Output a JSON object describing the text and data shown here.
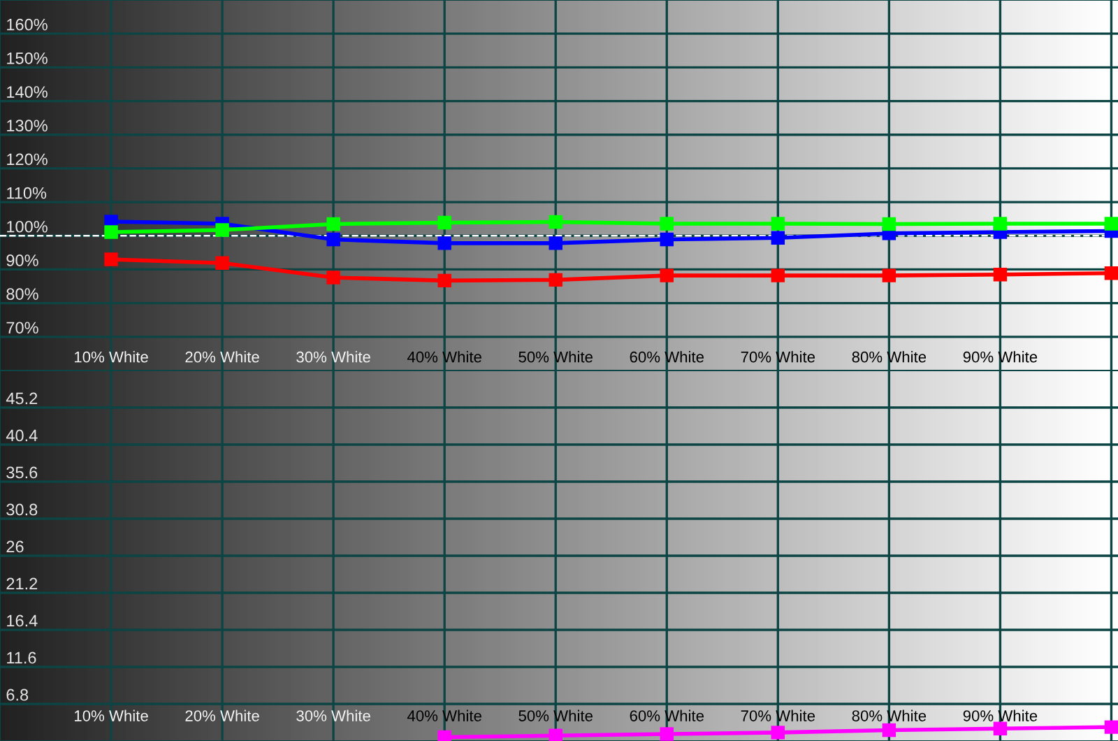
{
  "chart_data": [
    {
      "type": "line",
      "categories": [
        "10% White",
        "20% White",
        "30% White",
        "40% White",
        "50% White",
        "60% White",
        "70% White",
        "80% White",
        "90% White",
        null
      ],
      "series": [
        {
          "color": "#00ff00",
          "values": [
            101.1,
            101.7,
            103.5,
            103.9,
            104.1,
            103.6,
            103.6,
            103.5,
            103.6,
            103.6
          ]
        },
        {
          "color": "#0000ff",
          "values": [
            104.2,
            103.6,
            98.9,
            97.8,
            97.8,
            98.9,
            99.4,
            100.7,
            101.1,
            101.4
          ]
        },
        {
          "color": "#ff0000",
          "values": [
            93.0,
            91.9,
            87.6,
            86.7,
            86.9,
            88.2,
            88.2,
            88.2,
            88.5,
            88.9
          ]
        }
      ],
      "ylim": [
        60,
        170
      ],
      "yticks": [
        {
          "value": 70,
          "label": "70%"
        },
        {
          "value": 80,
          "label": "80%"
        },
        {
          "value": 90,
          "label": "90%"
        },
        {
          "value": 100,
          "label": "100%"
        },
        {
          "value": 110,
          "label": "110%"
        },
        {
          "value": 120,
          "label": "120%"
        },
        {
          "value": 130,
          "label": "130%"
        },
        {
          "value": 140,
          "label": "140%"
        },
        {
          "value": 150,
          "label": "150%"
        },
        {
          "value": 160,
          "label": "160%"
        }
      ],
      "ref_lines": [
        {
          "axis": "y",
          "value": 100,
          "color": "#ffffff",
          "line_style": "dashed"
        }
      ],
      "grid": true,
      "marker": "square",
      "line_style": "solid"
    },
    {
      "type": "line",
      "categories": [
        "10% White",
        "20% White",
        "30% White",
        "40% White",
        "50% White",
        "60% White",
        "70% White",
        "80% White",
        "90% White",
        null
      ],
      "series": [
        {
          "color": "#ff00ff",
          "values": [
            null,
            null,
            null,
            2.5,
            2.7,
            2.9,
            3.1,
            3.4,
            3.6,
            3.8
          ]
        }
      ],
      "ylim": [
        2,
        50
      ],
      "yticks": [
        6.8,
        11.6,
        16.4,
        21.2,
        26,
        30.8,
        35.6,
        40.4,
        45.2
      ],
      "grid": true,
      "marker": "square",
      "line_style": "solid"
    }
  ]
}
